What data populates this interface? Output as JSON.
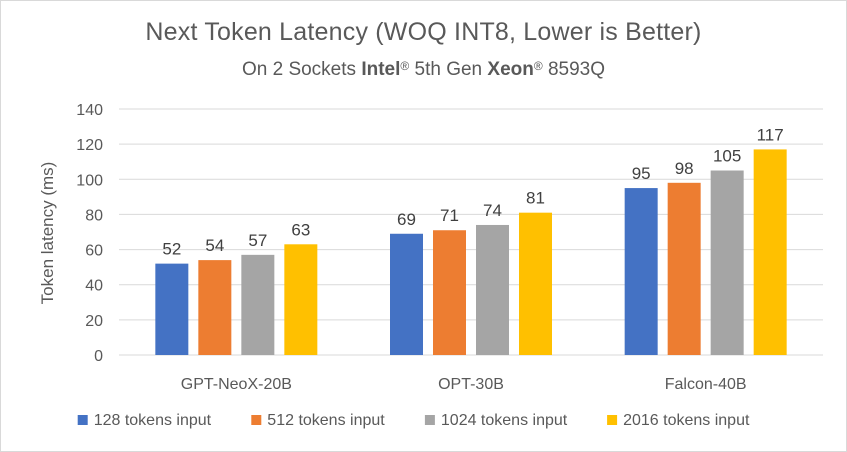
{
  "chart_data": {
    "type": "bar",
    "title": "Next Token Latency (WOQ INT8, Lower is Better)",
    "subtitle": {
      "prefix": "On 2 Sockets ",
      "brand1": "Intel",
      "reg1": "®",
      "middle": " 5th Gen ",
      "brand2": "Xeon",
      "reg2": "®",
      "suffix": " 8593Q"
    },
    "xlabel": "",
    "ylabel": "Token latency (ms)",
    "ylim": [
      0,
      140
    ],
    "yticks": [
      0,
      20,
      40,
      60,
      80,
      100,
      120,
      140
    ],
    "grid": true,
    "legend_position": "bottom",
    "categories": [
      "GPT-NeoX-20B",
      "OPT-30B",
      "Falcon-40B"
    ],
    "series": [
      {
        "name": "128 tokens input",
        "color": "#4472c4",
        "values": [
          52,
          69,
          95
        ]
      },
      {
        "name": "512 tokens input",
        "color": "#ed7d31",
        "values": [
          54,
          71,
          98
        ]
      },
      {
        "name": "1024 tokens input",
        "color": "#a5a5a5",
        "values": [
          57,
          74,
          105
        ]
      },
      {
        "name": "2016 tokens input",
        "color": "#ffc000",
        "values": [
          63,
          81,
          117
        ]
      }
    ]
  }
}
